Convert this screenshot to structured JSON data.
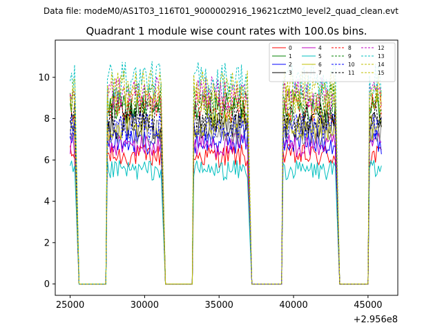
{
  "figure": {
    "suptitle": "Data file: modeM0/AS1T03_116T01_9000002916_19621cztM0_level2_quad_clean.evt"
  },
  "chart_data": {
    "type": "line",
    "title": "Quadrant 1 module wise count rates with 100.0s bins.",
    "xlabel": "",
    "ylabel": "",
    "x_offset_label": "+2.956e8",
    "xlim": [
      24000,
      47000
    ],
    "ylim": [
      -0.55,
      11.8
    ],
    "xticks": [
      25000,
      30000,
      35000,
      40000,
      45000
    ],
    "yticks": [
      0,
      2,
      4,
      6,
      8,
      10
    ],
    "legend_position": "top-right",
    "segments": [
      [
        25000,
        25300
      ],
      [
        27500,
        31100
      ],
      [
        33300,
        36900
      ],
      [
        39300,
        42800
      ],
      [
        45100,
        45950
      ]
    ],
    "series": [
      {
        "name": "0",
        "color": "#ff0000",
        "dash": "solid",
        "level": 6.2
      },
      {
        "name": "1",
        "color": "#008000",
        "dash": "solid",
        "level": 8.5
      },
      {
        "name": "2",
        "color": "#0000ff",
        "dash": "solid",
        "level": 6.9
      },
      {
        "name": "3",
        "color": "#000000",
        "dash": "solid",
        "level": 7.7
      },
      {
        "name": "4",
        "color": "#bf00bf",
        "dash": "solid",
        "level": 6.7
      },
      {
        "name": "5",
        "color": "#00bfbf",
        "dash": "solid",
        "level": 5.5
      },
      {
        "name": "6",
        "color": "#bfbf00",
        "dash": "solid",
        "level": 7.6
      },
      {
        "name": "7",
        "color": "#808080",
        "dash": "solid",
        "level": 7.4
      },
      {
        "name": "8",
        "color": "#ff0000",
        "dash": "dashed",
        "level": 8.6
      },
      {
        "name": "9",
        "color": "#008000",
        "dash": "dashed",
        "level": 8.9
      },
      {
        "name": "10",
        "color": "#0000ff",
        "dash": "dashed",
        "level": 7.6
      },
      {
        "name": "11",
        "color": "#000000",
        "dash": "dashed",
        "level": 8.1
      },
      {
        "name": "12",
        "color": "#bf00bf",
        "dash": "dashed",
        "level": 9.2
      },
      {
        "name": "13",
        "color": "#00bfbf",
        "dash": "dashed",
        "level": 9.9
      },
      {
        "name": "14",
        "color": "#bfbf00",
        "dash": "dashed",
        "level": 8.8
      },
      {
        "name": "15",
        "color": "#bfbf00",
        "dash": "dashed",
        "level": 9.5
      }
    ]
  }
}
